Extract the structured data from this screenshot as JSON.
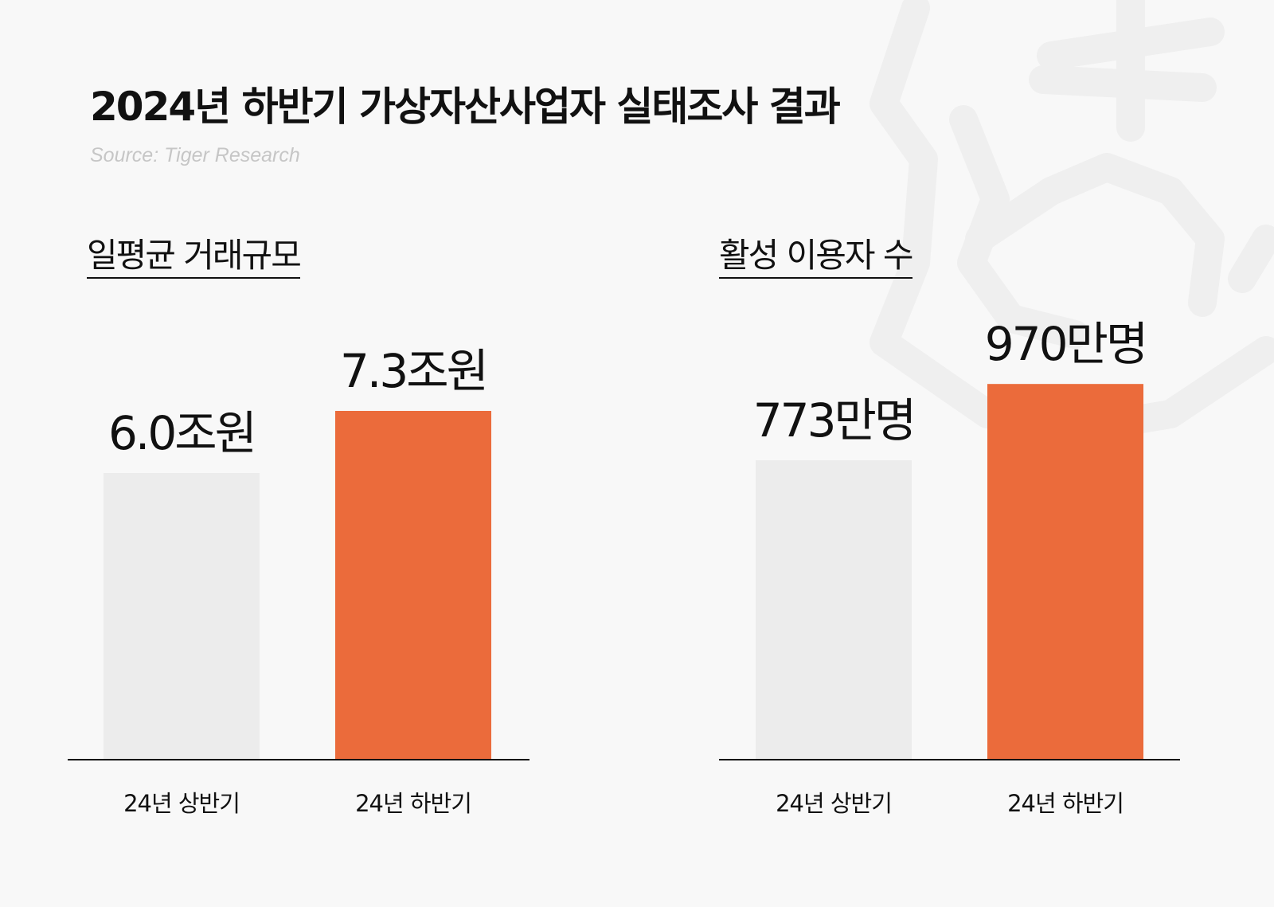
{
  "title": "2024년 하반기 가상자산사업자 실태조사 결과",
  "source": "Source: Tiger Research",
  "colors": {
    "background": "#f8f8f8",
    "bar_previous": "#ececec",
    "bar_current": "#eb6b3b",
    "baseline": "#111111",
    "watermark": "#efefef"
  },
  "watermark_icon": "tiger-logo-icon",
  "chart_data": [
    {
      "type": "bar",
      "title": "일평균 거래규모",
      "categories": [
        "24년 상반기",
        "24년 하반기"
      ],
      "values": [
        6.0,
        7.3
      ],
      "value_labels": [
        "6.0조원",
        "7.3조원"
      ],
      "unit": "조원",
      "bar_colors": [
        "#ececec",
        "#eb6b3b"
      ]
    },
    {
      "type": "bar",
      "title": "활성 이용자 수",
      "categories": [
        "24년 상반기",
        "24년 하반기"
      ],
      "values": [
        773,
        970
      ],
      "value_labels": [
        "773만명",
        "970만명"
      ],
      "unit": "만명",
      "bar_colors": [
        "#ececec",
        "#eb6b3b"
      ]
    }
  ]
}
